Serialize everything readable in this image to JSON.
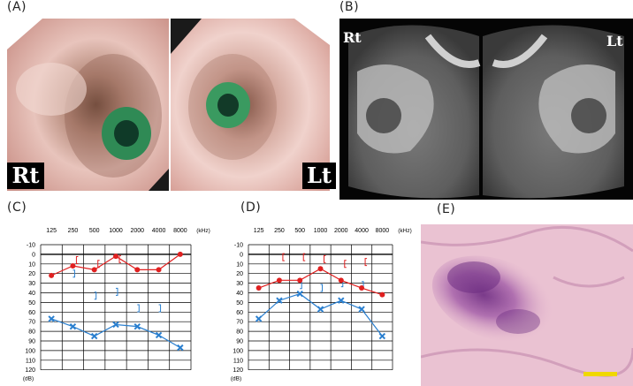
{
  "panels": {
    "a": {
      "label": "(A)",
      "right_tag": "Rt",
      "left_tag": "Lt"
    },
    "b": {
      "label": "(B)",
      "right_tag": "Rt",
      "left_tag": "Lt"
    },
    "c": {
      "label": "(C)"
    },
    "d": {
      "label": "(D)"
    },
    "e": {
      "label": "(E)"
    }
  },
  "audiogram_axes": {
    "freq_labels": [
      "125",
      "250",
      "500",
      "1000",
      "2000",
      "4000",
      "8000"
    ],
    "freq_unit": "(kHz)",
    "db_labels": [
      "-10",
      "0",
      "10",
      "20",
      "30",
      "40",
      "50",
      "60",
      "70",
      "80",
      "90",
      "100",
      "110",
      "120"
    ],
    "db_unit": "(dB)"
  },
  "colors": {
    "air_right": "#e02020",
    "air_left": "#2a7fcf",
    "scale_bar": "#f0d800"
  },
  "chart_data": [
    {
      "type": "line",
      "title": "",
      "x": [
        "125",
        "250",
        "500",
        "1000",
        "2000",
        "4000",
        "8000"
      ],
      "ylim": [
        120,
        -10
      ],
      "series": [
        {
          "values": [
            22,
            12,
            16,
            2,
            16,
            16,
            0
          ]
        },
        {
          "values": [
            67,
            75,
            85,
            73,
            75,
            84,
            97
          ]
        }
      ],
      "bone_right": [
        [
          1,
          6
        ],
        [
          2,
          10
        ],
        [
          3,
          5
        ]
      ],
      "bone_left": [
        [
          1,
          20
        ],
        [
          2,
          43
        ],
        [
          3,
          39
        ],
        [
          4,
          56
        ],
        [
          5,
          56
        ]
      ]
    },
    {
      "type": "line",
      "title": "",
      "x": [
        "125",
        "250",
        "500",
        "1000",
        "2000",
        "4000",
        "8000"
      ],
      "ylim": [
        120,
        -10
      ],
      "series": [
        {
          "values": [
            35,
            27,
            27,
            15,
            27,
            35,
            42
          ]
        },
        {
          "values": [
            67,
            48,
            41,
            57,
            48,
            57,
            85
          ]
        }
      ],
      "bone_right": [
        [
          1,
          3
        ],
        [
          2,
          3
        ],
        [
          3,
          5
        ],
        [
          4,
          10
        ],
        [
          5,
          8
        ]
      ],
      "bone_left": [
        [
          2,
          32
        ],
        [
          3,
          35
        ],
        [
          4,
          30
        ],
        [
          5,
          32
        ]
      ]
    }
  ]
}
